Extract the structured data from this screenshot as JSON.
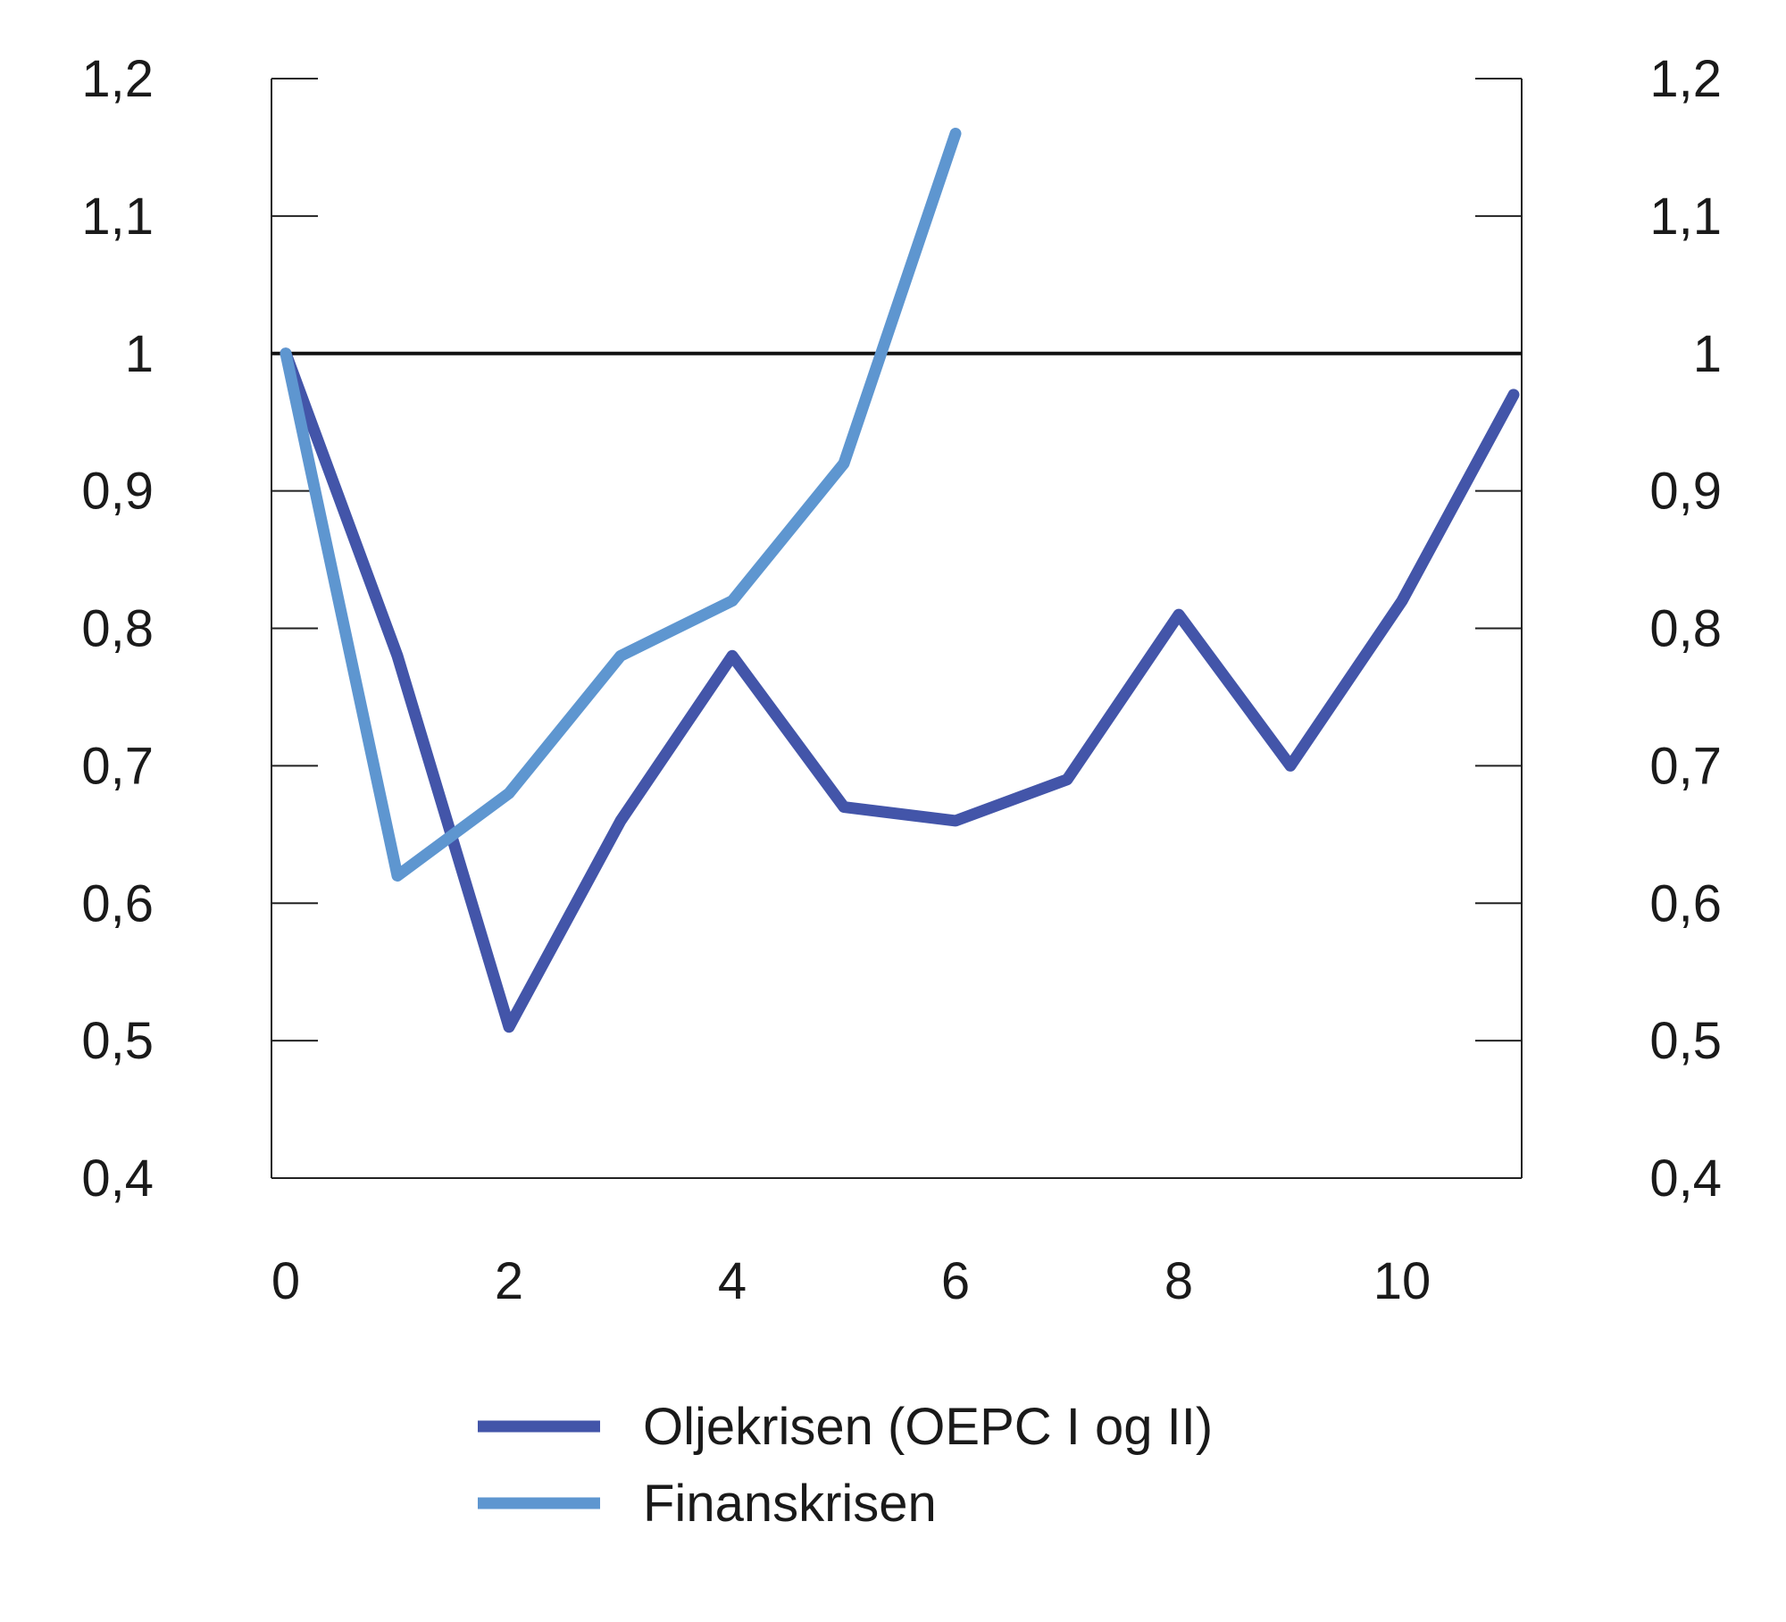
{
  "chart_data": {
    "type": "line",
    "title": "",
    "xlabel": "",
    "ylabel": "",
    "x_ticks": [
      "0",
      "2",
      "4",
      "6",
      "8",
      "10"
    ],
    "y_ticks": [
      "0,4",
      "0,5",
      "0,6",
      "0,7",
      "0,8",
      "0,9",
      "1",
      "1,1",
      "1,2"
    ],
    "xlim": [
      0,
      11
    ],
    "ylim": [
      0.4,
      1.2
    ],
    "secondary_y_axis": true,
    "reference_line": 1.0,
    "grid": false,
    "legend_position": "bottom",
    "series": [
      {
        "name": "Oljekrisen (OEPC I og II)",
        "color": "#4355a9",
        "x": [
          0,
          1,
          2,
          3,
          4,
          5,
          6,
          7,
          8,
          9,
          10,
          11
        ],
        "values": [
          1.0,
          0.78,
          0.51,
          0.66,
          0.78,
          0.67,
          0.66,
          0.69,
          0.81,
          0.7,
          0.82,
          0.97
        ]
      },
      {
        "name": "Finanskrisen",
        "color": "#5e96d0",
        "x": [
          0,
          1,
          2,
          3,
          4,
          5,
          6
        ],
        "values": [
          1.0,
          0.62,
          0.68,
          0.78,
          0.82,
          0.92,
          1.16
        ]
      }
    ]
  }
}
